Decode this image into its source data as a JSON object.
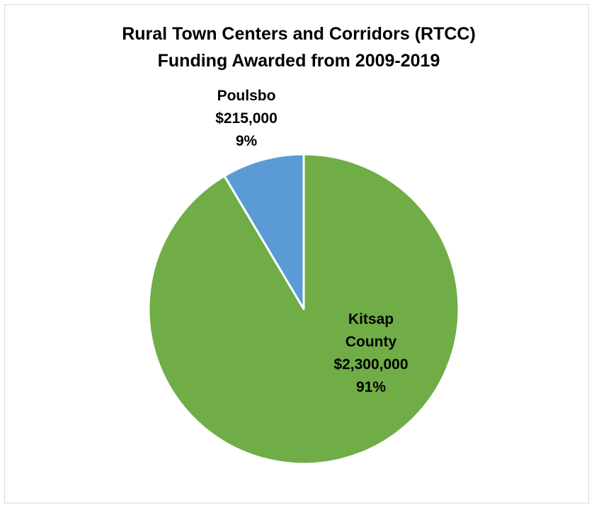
{
  "chart_data": {
    "type": "pie",
    "title": [
      "Rural Town Centers and Corridors (RTCC)",
      "Funding Awarded from 2009-2019"
    ],
    "slices": [
      {
        "label_lines": [
          "Kitsap",
          "County",
          "$2,300,000",
          "91%"
        ],
        "value": 2300000,
        "percent": 91,
        "color": "#70ad47"
      },
      {
        "label_lines": [
          "Poulsbo",
          "$215,000",
          "9%"
        ],
        "value": 215000,
        "percent": 9,
        "color": "#5b9bd5"
      }
    ],
    "legend": "none",
    "border_color": "#d9d9d9",
    "separator_color": "#ffffff"
  }
}
